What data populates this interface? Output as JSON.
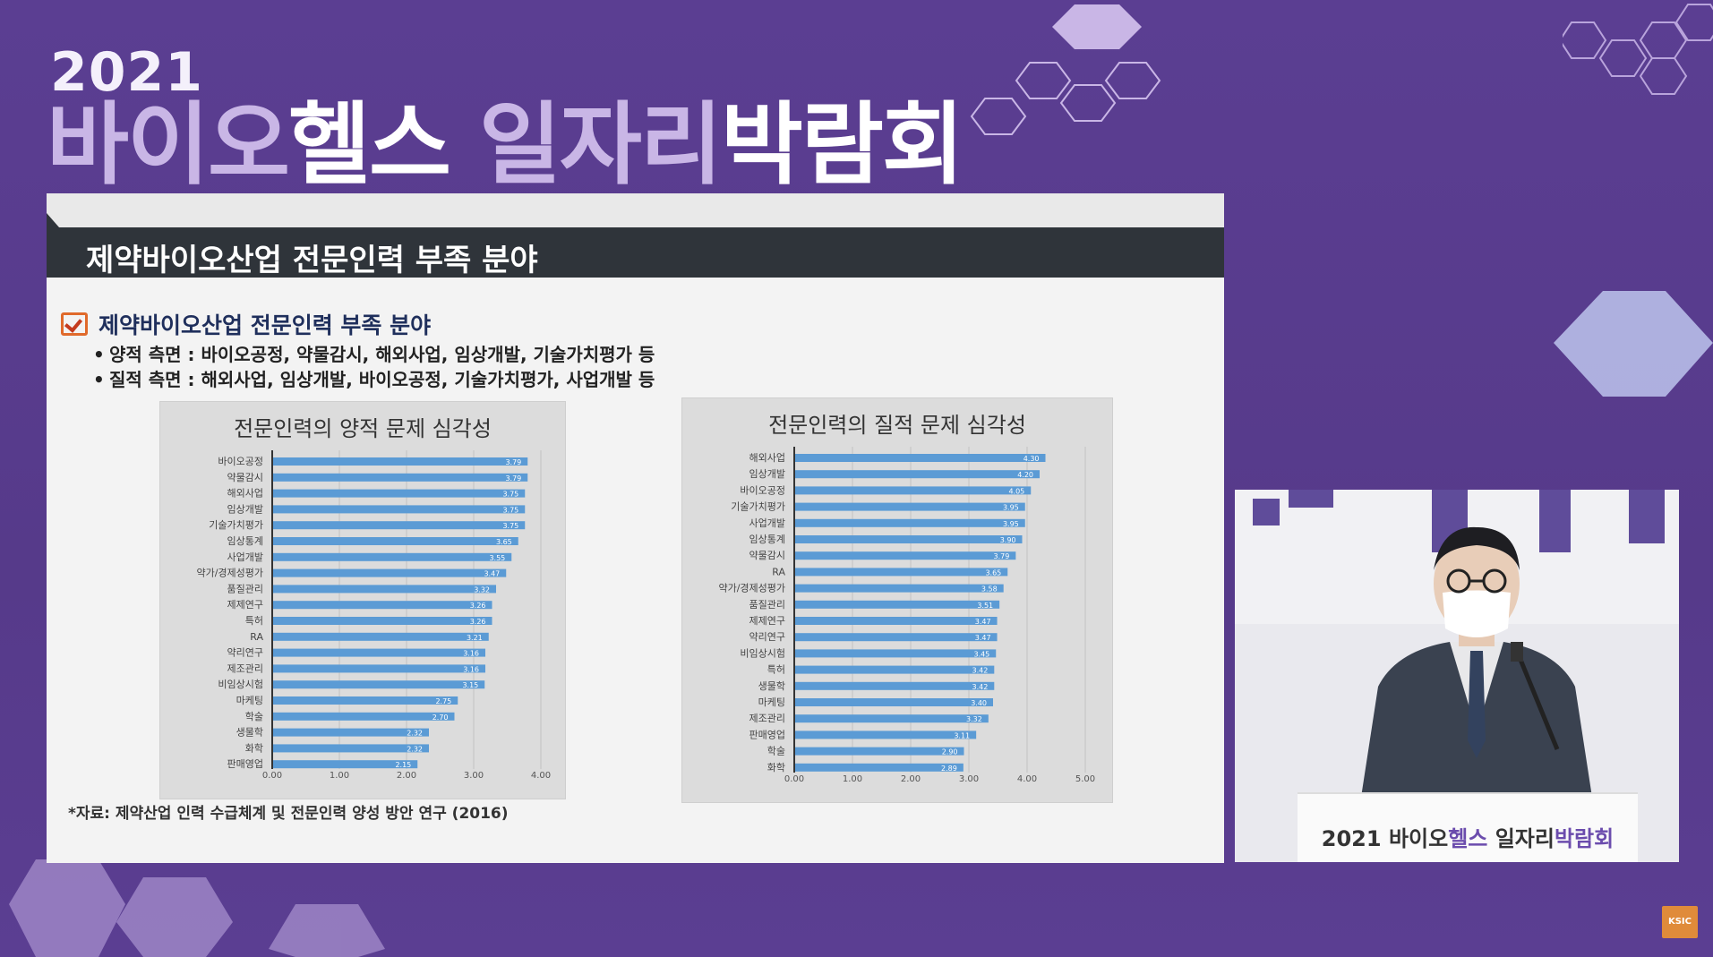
{
  "event": {
    "year": "2021",
    "title_part1": "바이오",
    "title_part2": "헬스",
    "title_part3": "일자리",
    "title_part4": "박람회"
  },
  "slide": {
    "header": "제약바이오산업 전문인력 부족 분야",
    "section_title": "제약바이오산업 전문인력 부족 분야",
    "bullets": [
      "양적 측면 : 바이오공정, 약물감시, 해외사업, 임상개발, 기술가치평가 등",
      "질적 측면 : 해외사업, 임상개발, 바이오공정, 기술가치평가, 사업개발 등"
    ],
    "bullet_marker": "•",
    "source": "*자료: 제약산업 인력 수급체계 및 전문인력 양성 방안 연구 (2016)"
  },
  "chart_data": [
    {
      "type": "bar",
      "orientation": "horizontal",
      "title": "전문인력의 양적 문제 심각성",
      "categories": [
        "바이오공정",
        "약물감시",
        "해외사업",
        "임상개발",
        "기술가치평가",
        "임상통계",
        "사업개발",
        "약가/경제성평가",
        "품질관리",
        "제제연구",
        "특허",
        "RA",
        "약리연구",
        "제조관리",
        "비임상시험",
        "마케팅",
        "학술",
        "생물학",
        "화학",
        "판매영업"
      ],
      "values": [
        3.79,
        3.79,
        3.75,
        3.75,
        3.75,
        3.65,
        3.55,
        3.47,
        3.32,
        3.26,
        3.26,
        3.21,
        3.16,
        3.16,
        3.15,
        2.75,
        2.7,
        2.32,
        2.32,
        2.15
      ],
      "value_labels": [
        "3.79",
        "3.79",
        "3.75",
        "3.75",
        "3.75",
        "3.65",
        "3.55",
        "3.47",
        "3.32",
        "3.26",
        "3.26",
        "3.21",
        "3.16",
        "3.16",
        "3.15",
        "2.75",
        "2.70",
        "2.32",
        "2.32",
        "2.15"
      ],
      "xticks": [
        "0.00",
        "1.00",
        "2.00",
        "3.00",
        "4.00"
      ],
      "xlim": [
        0,
        4
      ],
      "color": "#5b9bd5",
      "grid": true
    },
    {
      "type": "bar",
      "orientation": "horizontal",
      "title": "전문인력의 질적 문제 심각성",
      "categories": [
        "해외사업",
        "임상개발",
        "바이오공정",
        "기술가치평가",
        "사업개발",
        "임상통계",
        "약물감시",
        "RA",
        "약가/경제성평가",
        "품질관리",
        "제제연구",
        "약리연구",
        "비임상시험",
        "특허",
        "생물학",
        "마케팅",
        "제조관리",
        "판매영업",
        "학술",
        "화학"
      ],
      "values": [
        4.3,
        4.2,
        4.05,
        3.95,
        3.95,
        3.9,
        3.79,
        3.65,
        3.58,
        3.51,
        3.47,
        3.47,
        3.45,
        3.42,
        3.42,
        3.4,
        3.32,
        3.11,
        2.9,
        2.89
      ],
      "value_labels": [
        "4.30",
        "4.20",
        "4.05",
        "3.95",
        "3.95",
        "3.90",
        "3.79",
        "3.65",
        "3.58",
        "3.51",
        "3.47",
        "3.47",
        "3.45",
        "3.42",
        "3.42",
        "3.40",
        "3.32",
        "3.11",
        "2.90",
        "2.89"
      ],
      "xticks": [
        "0.00",
        "1.00",
        "2.00",
        "3.00",
        "4.00",
        "5.00"
      ],
      "xlim": [
        0,
        5
      ],
      "color": "#5b9bd5",
      "grid": true
    }
  ],
  "video": {
    "podium_year": "2021",
    "podium_part1": "바이오",
    "podium_part2": "헬스",
    "podium_part3": "일자리",
    "podium_part4": "박람회"
  },
  "broadcaster_logo": "KSIC",
  "colors": {
    "background": "#5a3d8f",
    "accent_light": "#c9b6e6",
    "slide_header": "#2f343a",
    "bar": "#5b9bd5"
  }
}
